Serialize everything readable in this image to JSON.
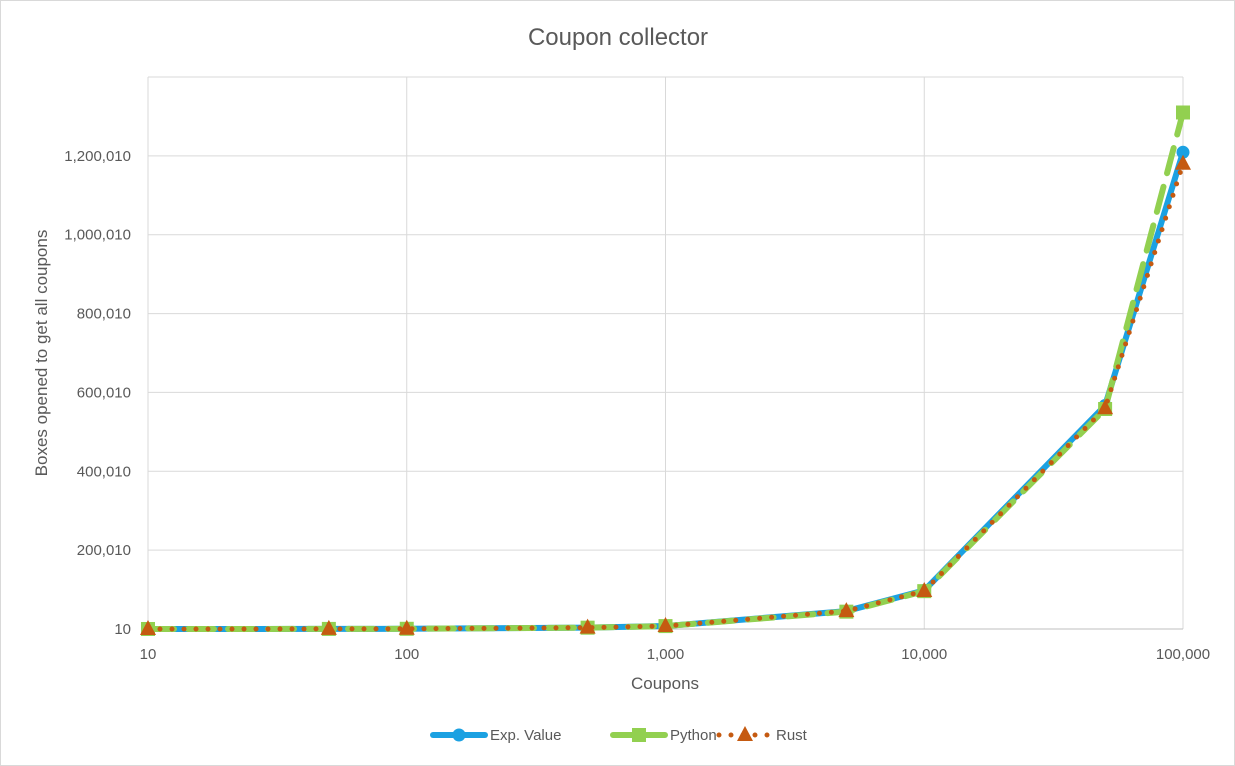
{
  "chart_data": {
    "type": "line",
    "title": "Coupon collector",
    "xlabel": "Coupons",
    "ylabel": "Boxes opened to get all coupons",
    "x_scale": "log",
    "xlim": [
      10,
      100000
    ],
    "ylim": [
      10,
      1400010
    ],
    "grid": true,
    "legend_position": "bottom",
    "x": [
      10,
      50,
      100,
      500,
      1000,
      5000,
      10000,
      50000,
      100000
    ],
    "x_ticks": [
      10,
      100,
      1000,
      10000,
      100000
    ],
    "x_tick_labels": [
      "10",
      "100",
      "1,000",
      "10,000",
      "100,000"
    ],
    "y_ticks": [
      10,
      200010,
      400010,
      600010,
      800010,
      1000010,
      1200010
    ],
    "y_tick_labels": [
      "10",
      "200,010",
      "400,010",
      "600,010",
      "800,010",
      "1,000,010",
      "1,200,010"
    ],
    "series": [
      {
        "name": "Exp. Value",
        "color": "#1ba1e2",
        "marker": "circle",
        "line_style": "solid",
        "values": [
          29,
          225,
          519,
          3396,
          7485,
          45472,
          97876,
          566709,
          1209014
        ]
      },
      {
        "name": "Python",
        "color": "#92d050",
        "marker": "square",
        "line_style": "dashed",
        "values": [
          28,
          218,
          540,
          3350,
          7400,
          44000,
          96000,
          558000,
          1310000
        ]
      },
      {
        "name": "Rust",
        "color": "#c55a11",
        "marker": "triangle",
        "line_style": "dotted",
        "values": [
          27,
          230,
          510,
          3420,
          7500,
          45500,
          96500,
          560000,
          1180000
        ]
      }
    ]
  }
}
